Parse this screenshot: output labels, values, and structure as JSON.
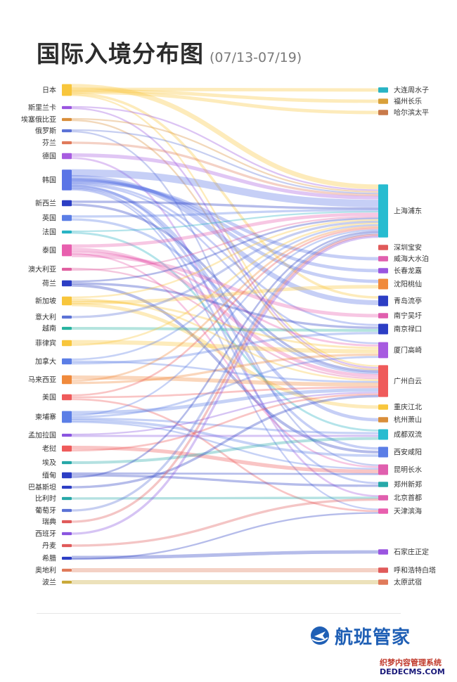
{
  "title": "国际入境分布图",
  "subtitle": "(07/13-07/19)",
  "brand": "航班管家",
  "watermark": {
    "line1": "织梦内容管理系统",
    "line2": "DEDECMS.COM"
  },
  "chart_data": {
    "type": "sankey",
    "sources": [
      {
        "name": "日本",
        "color": "#f8c63c",
        "weight": 4
      },
      {
        "name": "斯里兰卡",
        "color": "#9a55e0",
        "weight": 1
      },
      {
        "name": "埃塞俄比亚",
        "color": "#d98e3a",
        "weight": 1
      },
      {
        "name": "俄罗斯",
        "color": "#5b72d6",
        "weight": 1
      },
      {
        "name": "芬兰",
        "color": "#e07a5a",
        "weight": 1
      },
      {
        "name": "德国",
        "color": "#a75be0",
        "weight": 2
      },
      {
        "name": "韩国",
        "color": "#5b75e6",
        "weight": 7
      },
      {
        "name": "新西兰",
        "color": "#2c3ec4",
        "weight": 2
      },
      {
        "name": "英国",
        "color": "#5b7ee6",
        "weight": 2
      },
      {
        "name": "法国",
        "color": "#27b3c4",
        "weight": 1
      },
      {
        "name": "泰国",
        "color": "#e85fae",
        "weight": 4
      },
      {
        "name": "澳大利亚",
        "color": "#e05fa0",
        "weight": 1
      },
      {
        "name": "荷兰",
        "color": "#2c3ec4",
        "weight": 2
      },
      {
        "name": "新加坡",
        "color": "#f8c63c",
        "weight": 3
      },
      {
        "name": "意大利",
        "color": "#5b72d6",
        "weight": 1
      },
      {
        "name": "越南",
        "color": "#27b3a0",
        "weight": 1
      },
      {
        "name": "菲律宾",
        "color": "#f8c63c",
        "weight": 2
      },
      {
        "name": "加拿大",
        "color": "#5b7ee6",
        "weight": 2
      },
      {
        "name": "马来西亚",
        "color": "#f08a3c",
        "weight": 3
      },
      {
        "name": "美国",
        "color": "#ef5a5a",
        "weight": 2
      },
      {
        "name": "柬埔寨",
        "color": "#5b7ee6",
        "weight": 4
      },
      {
        "name": "孟加拉国",
        "color": "#8a55e0",
        "weight": 1
      },
      {
        "name": "老挝",
        "color": "#ef5a5a",
        "weight": 2
      },
      {
        "name": "埃及",
        "color": "#27a8a8",
        "weight": 1
      },
      {
        "name": "缅甸",
        "color": "#2c3ec4",
        "weight": 2
      },
      {
        "name": "巴基斯坦",
        "color": "#2c3ec4",
        "weight": 1
      },
      {
        "name": "比利时",
        "color": "#27a8a8",
        "weight": 1
      },
      {
        "name": "葡萄牙",
        "color": "#5b72d6",
        "weight": 1
      },
      {
        "name": "瑞典",
        "color": "#e05a5a",
        "weight": 1
      },
      {
        "name": "西班牙",
        "color": "#8a55e0",
        "weight": 1
      },
      {
        "name": "丹麦",
        "color": "#e05a5a",
        "weight": 1
      },
      {
        "name": "希腊",
        "color": "#2c3ec4",
        "weight": 1
      },
      {
        "name": "奥地利",
        "color": "#e07a5a",
        "weight": 1
      },
      {
        "name": "波兰",
        "color": "#c9a93a",
        "weight": 1
      }
    ],
    "targets": [
      {
        "name": "大连周水子",
        "color": "#27b3c4",
        "weight": 1
      },
      {
        "name": "福州长乐",
        "color": "#d9a03a",
        "weight": 1
      },
      {
        "name": "哈尔滨太平",
        "color": "#c97a4a",
        "weight": 1
      },
      {
        "name": "上海浦东",
        "color": "#27bcd0",
        "weight": 10
      },
      {
        "name": "深圳宝安",
        "color": "#e05a5a",
        "weight": 1
      },
      {
        "name": "威海大水泊",
        "color": "#e05fae",
        "weight": 1
      },
      {
        "name": "长春龙嘉",
        "color": "#9a55e0",
        "weight": 1
      },
      {
        "name": "沈阳桃仙",
        "color": "#f08a3c",
        "weight": 2
      },
      {
        "name": "青岛流亭",
        "color": "#2c3ec4",
        "weight": 2
      },
      {
        "name": "南宁吴圩",
        "color": "#e05fae",
        "weight": 1
      },
      {
        "name": "南京禄口",
        "color": "#2c3ec4",
        "weight": 2
      },
      {
        "name": "厦门高崎",
        "color": "#a75be0",
        "weight": 3
      },
      {
        "name": "广州白云",
        "color": "#ef5a5a",
        "weight": 6
      },
      {
        "name": "重庆江北",
        "color": "#f8c63c",
        "weight": 1
      },
      {
        "name": "杭州萧山",
        "color": "#d98e3a",
        "weight": 1
      },
      {
        "name": "成都双流",
        "color": "#27bcd0",
        "weight": 2
      },
      {
        "name": "西安咸阳",
        "color": "#5b7ee6",
        "weight": 2
      },
      {
        "name": "昆明长水",
        "color": "#e05fae",
        "weight": 2
      },
      {
        "name": "郑州新郑",
        "color": "#27a8a8",
        "weight": 1
      },
      {
        "name": "北京首都",
        "color": "#e05fae",
        "weight": 1
      },
      {
        "name": "天津滨海",
        "color": "#e85fae",
        "weight": 1
      },
      {
        "name": "石家庄正定",
        "color": "#9a55e0",
        "weight": 1
      },
      {
        "name": "呼和浩特白塔",
        "color": "#e05a5a",
        "weight": 1
      },
      {
        "name": "太原武宿",
        "color": "#e07a5a",
        "weight": 1
      }
    ],
    "links": [
      [
        "日本",
        "上海浦东",
        3
      ],
      [
        "日本",
        "大连周水子",
        1
      ],
      [
        "日本",
        "福州长乐",
        1
      ],
      [
        "日本",
        "哈尔滨太平",
        1
      ],
      [
        "日本",
        "青岛流亭",
        1
      ],
      [
        "日本",
        "广州白云",
        1
      ],
      [
        "斯里兰卡",
        "上海浦东",
        1
      ],
      [
        "斯里兰卡",
        "广州白云",
        1
      ],
      [
        "埃塞俄比亚",
        "上海浦东",
        1
      ],
      [
        "埃塞俄比亚",
        "广州白云",
        1
      ],
      [
        "俄罗斯",
        "上海浦东",
        1
      ],
      [
        "俄罗斯",
        "昆明长水",
        1
      ],
      [
        "芬兰",
        "上海浦东",
        1
      ],
      [
        "德国",
        "上海浦东",
        2
      ],
      [
        "德国",
        "北京首都",
        1
      ],
      [
        "韩国",
        "上海浦东",
        5
      ],
      [
        "韩国",
        "青岛流亭",
        2
      ],
      [
        "韩国",
        "沈阳桃仙",
        1
      ],
      [
        "韩国",
        "长春龙嘉",
        1
      ],
      [
        "韩国",
        "威海大水泊",
        1
      ],
      [
        "韩国",
        "南京禄口",
        1
      ],
      [
        "韩国",
        "厦门高崎",
        1
      ],
      [
        "韩国",
        "西安咸阳",
        1
      ],
      [
        "韩国",
        "杭州萧山",
        1
      ],
      [
        "韩国",
        "郑州新郑",
        1
      ],
      [
        "韩国",
        "天津滨海",
        1
      ],
      [
        "新西兰",
        "上海浦东",
        1
      ],
      [
        "新西兰",
        "广州白云",
        1
      ],
      [
        "英国",
        "上海浦东",
        1
      ],
      [
        "英国",
        "广州白云",
        1
      ],
      [
        "法国",
        "上海浦东",
        1
      ],
      [
        "法国",
        "成都双流",
        1
      ],
      [
        "泰国",
        "上海浦东",
        2
      ],
      [
        "泰国",
        "广州白云",
        2
      ],
      [
        "泰国",
        "厦门高崎",
        1
      ],
      [
        "泰国",
        "昆明长水",
        1
      ],
      [
        "泰国",
        "南宁吴圩",
        1
      ],
      [
        "澳大利亚",
        "广州白云",
        1
      ],
      [
        "澳大利亚",
        "上海浦东",
        1
      ],
      [
        "荷兰",
        "上海浦东",
        1
      ],
      [
        "荷兰",
        "南京禄口",
        1
      ],
      [
        "荷兰",
        "西安咸阳",
        1
      ],
      [
        "新加坡",
        "上海浦东",
        1
      ],
      [
        "新加坡",
        "广州白云",
        1
      ],
      [
        "新加坡",
        "厦门高崎",
        1
      ],
      [
        "新加坡",
        "沈阳桃仙",
        1
      ],
      [
        "新加坡",
        "重庆江北",
        1
      ],
      [
        "意大利",
        "上海浦东",
        1
      ],
      [
        "越南",
        "南京禄口",
        1
      ],
      [
        "菲律宾",
        "厦门高崎",
        2
      ],
      [
        "菲律宾",
        "上海浦东",
        1
      ],
      [
        "加拿大",
        "上海浦东",
        1
      ],
      [
        "加拿大",
        "广州白云",
        1
      ],
      [
        "加拿大",
        "南京禄口",
        1
      ],
      [
        "马来西亚",
        "广州白云",
        2
      ],
      [
        "马来西亚",
        "上海浦东",
        1
      ],
      [
        "马来西亚",
        "厦门高崎",
        1
      ],
      [
        "美国",
        "上海浦东",
        1
      ],
      [
        "美国",
        "广州白云",
        1
      ],
      [
        "美国",
        "天津滨海",
        1
      ],
      [
        "柬埔寨",
        "广州白云",
        2
      ],
      [
        "柬埔寨",
        "上海浦东",
        1
      ],
      [
        "柬埔寨",
        "厦门高崎",
        1
      ],
      [
        "柬埔寨",
        "成都双流",
        1
      ],
      [
        "柬埔寨",
        "西安咸阳",
        1
      ],
      [
        "柬埔寨",
        "昆明长水",
        1
      ],
      [
        "孟加拉国",
        "广州白云",
        1
      ],
      [
        "孟加拉国",
        "成都双流",
        1
      ],
      [
        "老挝",
        "昆明长水",
        2
      ],
      [
        "老挝",
        "广州白云",
        1
      ],
      [
        "埃及",
        "成都双流",
        1
      ],
      [
        "缅甸",
        "昆明长水",
        1
      ],
      [
        "缅甸",
        "郑州新郑",
        1
      ],
      [
        "缅甸",
        "上海浦东",
        1
      ],
      [
        "巴基斯坦",
        "广州白云",
        1
      ],
      [
        "比利时",
        "北京首都",
        1
      ],
      [
        "葡萄牙",
        "上海浦东",
        1
      ],
      [
        "瑞典",
        "上海浦东",
        1
      ],
      [
        "西班牙",
        "上海浦东",
        1
      ],
      [
        "丹麦",
        "北京首都",
        1
      ],
      [
        "希腊",
        "石家庄正定",
        1
      ],
      [
        "希腊",
        "天津滨海",
        1
      ],
      [
        "奥地利",
        "呼和浩特白塔",
        1
      ],
      [
        "波兰",
        "太原武宿",
        1
      ]
    ]
  }
}
